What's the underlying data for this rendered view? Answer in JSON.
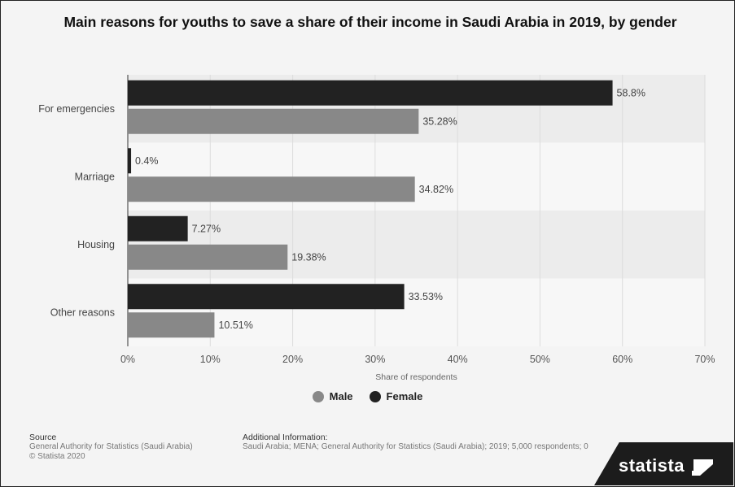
{
  "title": "Main reasons for youths to save a share of their income in Saudi Arabia in 2019, by gender",
  "chart_data": {
    "type": "bar",
    "orientation": "horizontal",
    "categories": [
      "For emergencies",
      "Marriage",
      "Housing",
      "Other reasons"
    ],
    "series": [
      {
        "name": "Female",
        "color": "#222222",
        "values": [
          58.8,
          0.4,
          7.27,
          33.53
        ],
        "labels": [
          "58.8%",
          "0.4%",
          "7.27%",
          "33.53%"
        ]
      },
      {
        "name": "Male",
        "color": "#888888",
        "values": [
          35.28,
          34.82,
          19.38,
          10.51
        ],
        "labels": [
          "35.28%",
          "34.82%",
          "19.38%",
          "10.51%"
        ]
      }
    ],
    "xlim": [
      0,
      70
    ],
    "xticks": [
      "0%",
      "10%",
      "20%",
      "30%",
      "40%",
      "50%",
      "60%",
      "70%"
    ],
    "xlabel": "Share of respondents",
    "grid": true,
    "legend": [
      {
        "name": "Male",
        "color": "#888888"
      },
      {
        "name": "Female",
        "color": "#222222"
      }
    ],
    "legend_position": "bottom"
  },
  "footer": {
    "source_heading": "Source",
    "source_line1": "General Authority for Statistics (Saudi Arabia)",
    "source_line2": "© Statista 2020",
    "info_heading": "Additional Information:",
    "info_text": "Saudi Arabia; MENA; General Authority for Statistics (Saudi Arabia); 2019; 5,000 respondents; 0"
  },
  "brand": "statista"
}
